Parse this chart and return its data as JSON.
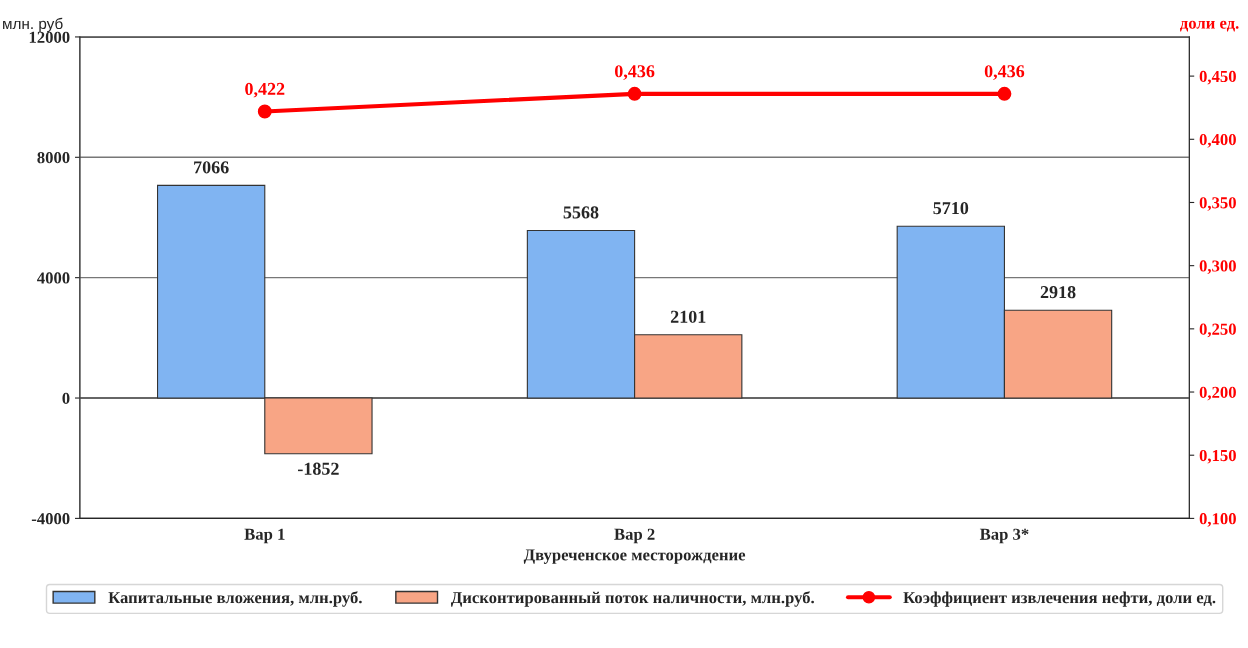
{
  "chart_data": {
    "type": "bar",
    "xlabel": "Двуреченское месторождение",
    "ylabel": "млн. руб",
    "y2label": "доли ед.",
    "categories": [
      "Вар 1",
      "Вар 2",
      "Вар 3*"
    ],
    "series": [
      {
        "name": "Капитальные вложения, млн.руб.",
        "color": "#80b4f2",
        "values": [
          7066,
          5568,
          5710
        ],
        "value_labels": [
          "7066",
          "5568",
          "5710"
        ]
      },
      {
        "name": "Дисконтированный поток наличности, млн.руб.",
        "color": "#f8a585",
        "values": [
          -1852,
          2101,
          2918
        ],
        "value_labels": [
          "-1852",
          "2101",
          "2918"
        ]
      },
      {
        "name": "Коэффициент извлечения нефти, доли ед.",
        "type": "line",
        "axis": "y2",
        "color": "#ff0000",
        "marker": "circle",
        "values": [
          0.422,
          0.436,
          0.436
        ],
        "value_labels": [
          "0,422",
          "0,436",
          "0,436"
        ]
      }
    ],
    "ylim": [
      -4000,
      12000
    ],
    "yticks": [
      -4000,
      0,
      4000,
      8000,
      12000
    ],
    "y2lim": [
      0.1,
      0.481
    ],
    "y2ticks": [
      {
        "value": 0.1,
        "label": "0,100"
      },
      {
        "value": 0.15,
        "label": "0,150"
      },
      {
        "value": 0.2,
        "label": "0,200"
      },
      {
        "value": 0.25,
        "label": "0,250"
      },
      {
        "value": 0.3,
        "label": "0,300"
      },
      {
        "value": 0.35,
        "label": "0,350"
      },
      {
        "value": 0.4,
        "label": "0,400"
      },
      {
        "value": 0.45,
        "label": "0,450"
      }
    ],
    "grid": "y",
    "legend": "bottom"
  }
}
